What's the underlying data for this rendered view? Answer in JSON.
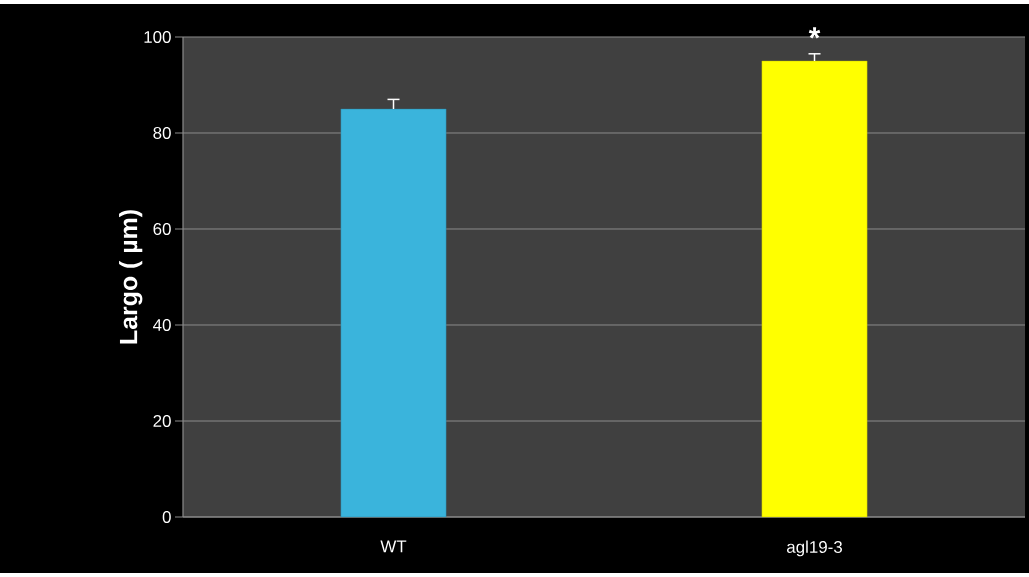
{
  "chart_data": {
    "type": "bar",
    "ylabel": "Largo ( µm)",
    "categories": [
      "WT",
      "agl19-3"
    ],
    "values": [
      85,
      95
    ],
    "errors": [
      2,
      1.5
    ],
    "colors": [
      "#3ab4dc",
      "#ffff00"
    ],
    "ylim": [
      0,
      100
    ],
    "yticks": [
      0,
      20,
      40,
      60,
      80,
      100
    ],
    "grid": "y",
    "annotations": [
      {
        "text": "*",
        "x": "agl19-3",
        "y": 97
      }
    ]
  }
}
